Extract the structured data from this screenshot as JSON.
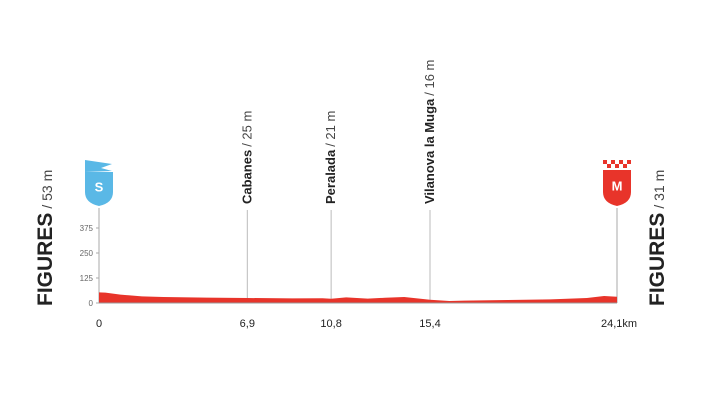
{
  "chart_data": {
    "type": "area",
    "start": {
      "name": "FIGURES",
      "elevation": "/ 53 m",
      "icon": "S"
    },
    "finish": {
      "name": "FIGURES",
      "elevation": "/ 31 m",
      "icon": "M"
    },
    "waypoints": [
      {
        "name": "Cabanes",
        "elevation": "/ 25 m"
      },
      {
        "name": "Peralada",
        "elevation": "/ 21 m"
      },
      {
        "name": "Vilanova la Muga",
        "elevation": "/ 16 m"
      }
    ],
    "x": [
      0,
      0.3,
      1,
      2,
      3,
      5,
      6.9,
      9,
      10.4,
      10.8,
      11.5,
      12.5,
      13.3,
      14.2,
      15.4,
      16.3,
      17,
      19,
      21,
      22.7,
      23.5,
      24.1
    ],
    "series": [
      {
        "color": "#e8342a",
        "values": [
          53,
          52,
          42,
          33,
          30,
          27,
          25,
          23,
          24,
          21,
          28,
          22,
          26,
          30,
          16,
          10,
          12,
          15,
          18,
          25,
          35,
          31
        ]
      }
    ],
    "xlim": [
      0,
      24.1
    ],
    "ylim": [
      0,
      375
    ],
    "yticks": [
      0,
      125,
      250,
      375
    ],
    "xticks": [
      0,
      {
        "value": 6.9,
        "label": "6,9"
      },
      {
        "value": 10.8,
        "label": "10,8"
      },
      {
        "value": 15.4,
        "label": "15,4"
      },
      {
        "value": 24.1,
        "label": "24,1km"
      }
    ]
  }
}
